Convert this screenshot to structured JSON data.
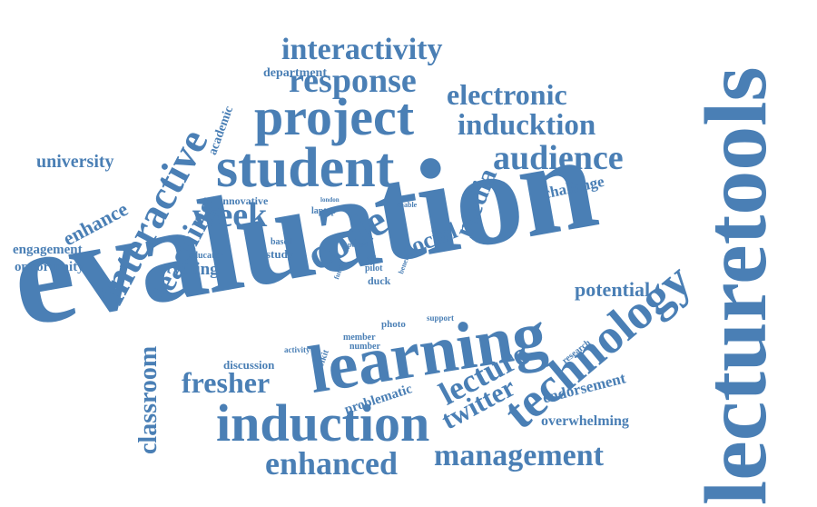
{
  "accent_color": "#4a7fb5",
  "words": [
    "evaluation",
    "lecturetools",
    "learning",
    "technology",
    "induction",
    "student",
    "project",
    "code",
    "interactive",
    "teaching",
    "audience",
    "electronic",
    "inducktion",
    "response",
    "interactivity",
    "week",
    "enhanced",
    "management",
    "lecture",
    "twitter",
    "fresher",
    "classroom",
    "media",
    "social",
    "potential",
    "university",
    "enhance",
    "engagement",
    "opportunity",
    "voting",
    "challenge",
    "endorsement",
    "overwhelming",
    "problematic",
    "discussion",
    "academic",
    "department",
    "innovative",
    "laptop",
    "london",
    "enable",
    "based",
    "study",
    "period",
    "educator",
    "pilot",
    "duck",
    "future",
    "benefit",
    "tool",
    "photo",
    "support",
    "member",
    "number",
    "activity",
    "toolkit",
    "research"
  ]
}
